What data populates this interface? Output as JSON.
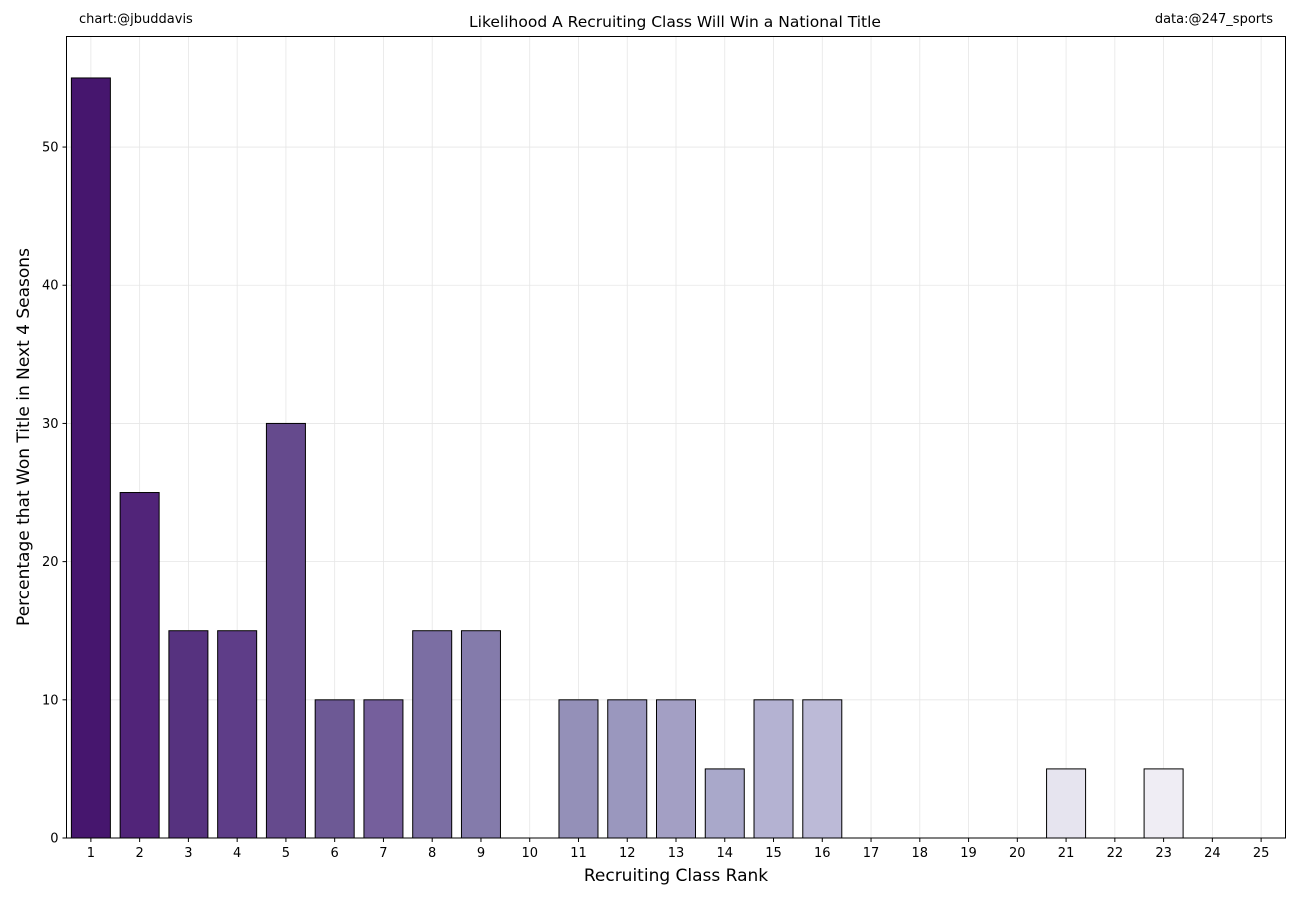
{
  "header": {
    "credit_left": "chart:@jbuddavis",
    "credit_right": "data:@247_sports"
  },
  "chart_data": {
    "type": "bar",
    "title": "Likelihood A Recruiting Class Will Win a National Title",
    "xlabel": "Recruiting Class Rank",
    "ylabel": "Percentage that Won Title in Next 4 Seasons",
    "categories": [
      "1",
      "2",
      "3",
      "4",
      "5",
      "6",
      "7",
      "8",
      "9",
      "10",
      "11",
      "12",
      "13",
      "14",
      "15",
      "16",
      "17",
      "18",
      "19",
      "20",
      "21",
      "22",
      "23",
      "24",
      "25"
    ],
    "values": [
      55,
      25,
      15,
      15,
      30,
      10,
      10,
      15,
      15,
      0,
      10,
      10,
      10,
      5,
      10,
      10,
      0,
      0,
      0,
      0,
      5,
      0,
      5,
      0,
      0
    ],
    "colors": [
      "#46166e",
      "#512479",
      "#56327f",
      "#5e3d88",
      "#654a8d",
      "#6d5995",
      "#755f9c",
      "#7b6ea3",
      "#847bab",
      "#8e88b6",
      "#9490b8",
      "#9a97be",
      "#a39fc4",
      "#a9a8ca",
      "#b4b2d2",
      "#bcbad7",
      "#c8c6de",
      "#d1d0e6",
      "#d9d7eb",
      "#e1e0ef",
      "#e6e4ef",
      "#eae8f3",
      "#efedf4",
      "#f5f3f9",
      "#f8f7fc"
    ],
    "ylim": [
      0,
      58
    ],
    "yticks": [
      0,
      10,
      20,
      30,
      40,
      50
    ],
    "grid": true,
    "legend": "none"
  }
}
